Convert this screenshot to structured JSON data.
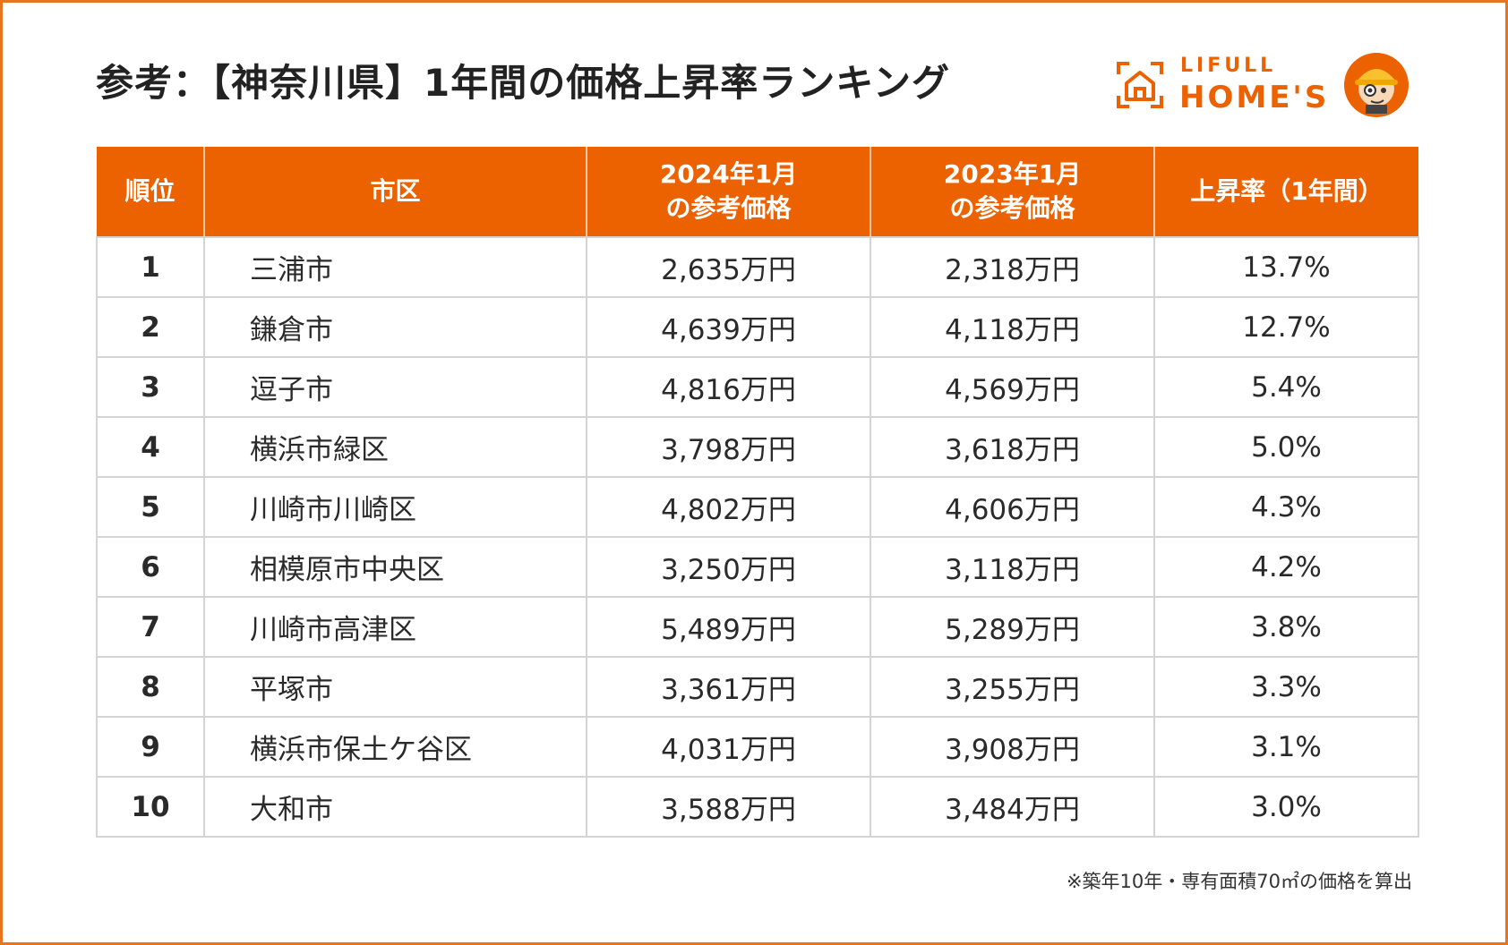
{
  "title": "参考：【神奈川県】1年間の価格上昇率ランキング",
  "logo": {
    "brand_top": "LIFULL",
    "brand_main": "HOME'S"
  },
  "colors": {
    "accent": "#ec6100",
    "border": "#e8741e",
    "grid": "#d4d4d4"
  },
  "table": {
    "headers": {
      "rank": "順位",
      "city": "市区",
      "price_2024_line1": "2024年1月",
      "price_2024_line2": "の参考価格",
      "price_2023_line1": "2023年1月",
      "price_2023_line2": "の参考価格",
      "rate": "上昇率（1年間）"
    },
    "rows": [
      {
        "rank": "1",
        "city": "三浦市",
        "price_2024": "2,635万円",
        "price_2023": "2,318万円",
        "rate": "13.7%"
      },
      {
        "rank": "2",
        "city": "鎌倉市",
        "price_2024": "4,639万円",
        "price_2023": "4,118万円",
        "rate": "12.7%"
      },
      {
        "rank": "3",
        "city": "逗子市",
        "price_2024": "4,816万円",
        "price_2023": "4,569万円",
        "rate": "5.4%"
      },
      {
        "rank": "4",
        "city": "横浜市緑区",
        "price_2024": "3,798万円",
        "price_2023": "3,618万円",
        "rate": "5.0%"
      },
      {
        "rank": "5",
        "city": "川崎市川崎区",
        "price_2024": "4,802万円",
        "price_2023": "4,606万円",
        "rate": "4.3%"
      },
      {
        "rank": "6",
        "city": "相模原市中央区",
        "price_2024": "3,250万円",
        "price_2023": "3,118万円",
        "rate": "4.2%"
      },
      {
        "rank": "7",
        "city": "川崎市高津区",
        "price_2024": "5,489万円",
        "price_2023": "5,289万円",
        "rate": "3.8%"
      },
      {
        "rank": "8",
        "city": "平塚市",
        "price_2024": "3,361万円",
        "price_2023": "3,255万円",
        "rate": "3.3%"
      },
      {
        "rank": "9",
        "city": "横浜市保土ケ谷区",
        "price_2024": "4,031万円",
        "price_2023": "3,908万円",
        "rate": "3.1%"
      },
      {
        "rank": "10",
        "city": "大和市",
        "price_2024": "3,588万円",
        "price_2023": "3,484万円",
        "rate": "3.0%"
      }
    ]
  },
  "footnote": "※築年10年・専有面積70㎡の価格を算出"
}
